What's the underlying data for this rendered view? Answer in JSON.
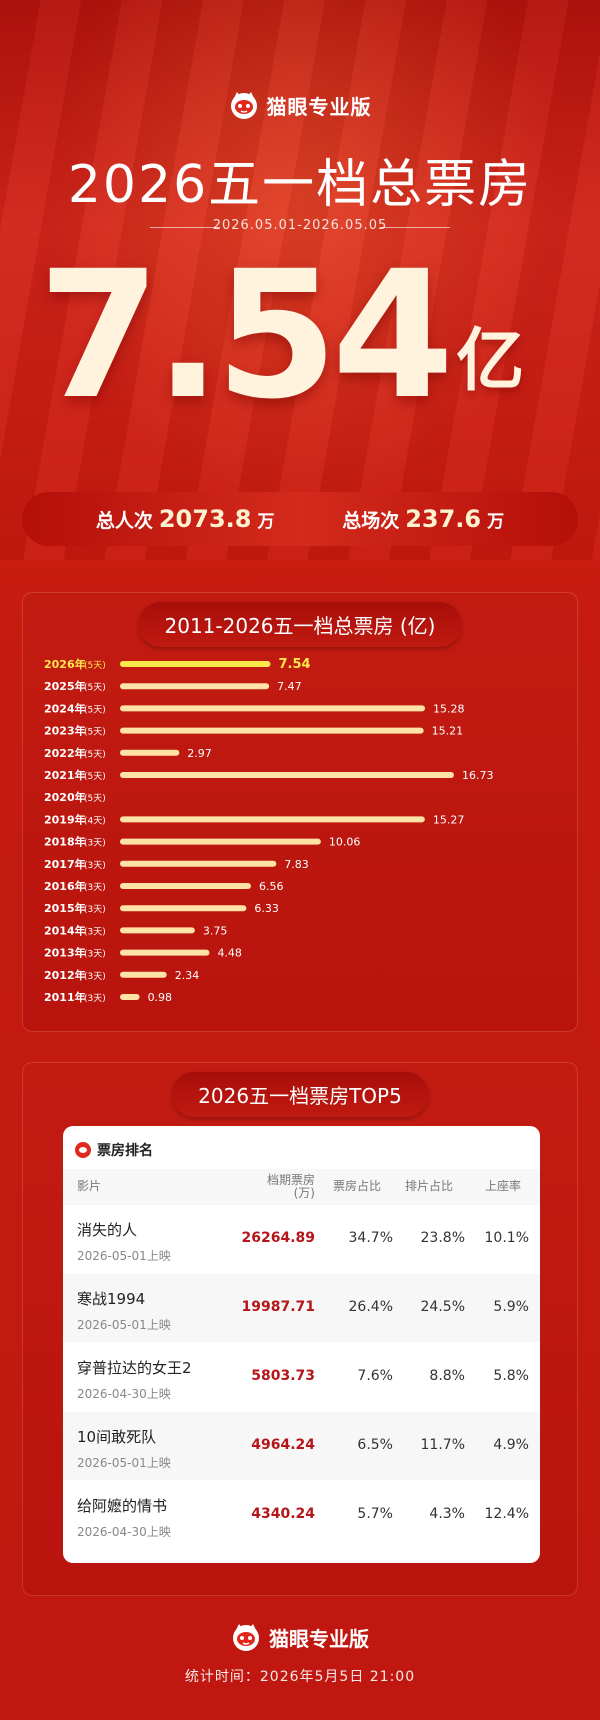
{
  "brand": {
    "name": "猫眼专业版",
    "icon": "cat-logo-icon"
  },
  "hero": {
    "title": "2026五一档总票房",
    "date_range": "2026.05.01-2026.05.05",
    "total_value": "7.54",
    "total_unit": "亿",
    "admissions_label": "总人次",
    "admissions_value": "2073.8",
    "admissions_unit": "万",
    "screenings_label": "总场次",
    "screenings_value": "237.6",
    "screenings_unit": "万"
  },
  "history_panel": {
    "title": "2011-2026五一档总票房 (亿)"
  },
  "chart_data": {
    "type": "bar",
    "orientation": "horizontal",
    "title": "2011-2026五一档总票房 (亿)",
    "categories": [
      "2026年",
      "2025年",
      "2024年",
      "2023年",
      "2022年",
      "2021年",
      "2020年",
      "2019年",
      "2018年",
      "2017年",
      "2016年",
      "2015年",
      "2014年",
      "2013年",
      "2012年",
      "2011年"
    ],
    "day_labels": [
      "(5天)",
      "(5天)",
      "(5天)",
      "(5天)",
      "(5天)",
      "(5天)",
      "(5天)",
      "(4天)",
      "(3天)",
      "(3天)",
      "(3天)",
      "(3天)",
      "(3天)",
      "(3天)",
      "(3天)",
      "(3天)"
    ],
    "values": [
      7.54,
      7.47,
      15.28,
      15.21,
      2.97,
      16.73,
      null,
      15.27,
      10.06,
      7.83,
      6.56,
      6.33,
      3.75,
      4.48,
      2.34,
      0.98
    ],
    "value_labels": [
      "7.54",
      "7.47",
      "15.28",
      "15.21",
      "2.97",
      "16.73",
      "",
      "15.27",
      "10.06",
      "7.83",
      "6.56",
      "6.33",
      "3.75",
      "4.48",
      "2.34",
      "0.98"
    ],
    "highlight_index": 0,
    "xlim": [
      0,
      16.73
    ],
    "colors": {
      "bar": "#ffe2a6",
      "highlight": "#ffe94a",
      "label": "#ffffff"
    }
  },
  "top5_panel": {
    "title": "2026五一档票房TOP5",
    "card_title": "票房排名",
    "headers": {
      "film": "影片",
      "gross": "档期票房",
      "gross_unit": "(万)",
      "share": "票房占比",
      "screen_share": "排片占比",
      "occupancy": "上座率"
    },
    "rows": [
      {
        "name": "消失的人",
        "date": "2026-05-01上映",
        "gross": "26264.89",
        "share": "34.7%",
        "screen_share": "23.8%",
        "occupancy": "10.1%"
      },
      {
        "name": "寒战1994",
        "date": "2026-05-01上映",
        "gross": "19987.71",
        "share": "26.4%",
        "screen_share": "24.5%",
        "occupancy": "5.9%"
      },
      {
        "name": "穿普拉达的女王2",
        "date": "2026-04-30上映",
        "gross": "5803.73",
        "share": "7.6%",
        "screen_share": "8.8%",
        "occupancy": "5.8%"
      },
      {
        "name": "10间敢死队",
        "date": "2026-05-01上映",
        "gross": "4964.24",
        "share": "6.5%",
        "screen_share": "11.7%",
        "occupancy": "4.9%"
      },
      {
        "name": "给阿嬷的情书",
        "date": "2026-04-30上映",
        "gross": "4340.24",
        "share": "5.7%",
        "screen_share": "4.3%",
        "occupancy": "12.4%"
      }
    ]
  },
  "footer": {
    "brand": "猫眼专业版",
    "stats_time": "统计时间：2026年5月5日  21:00"
  }
}
